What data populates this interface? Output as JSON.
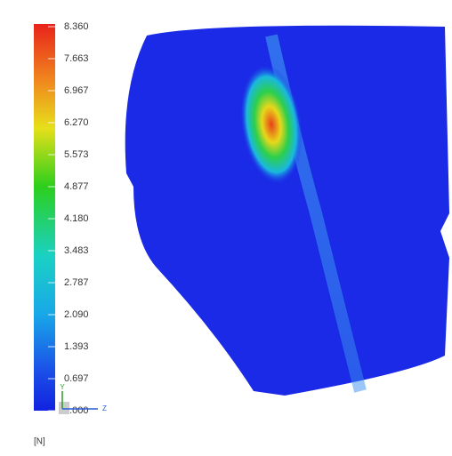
{
  "legend": {
    "labels": [
      "8.360",
      "7.663",
      "6.967",
      "6.270",
      "5.573",
      "4.877",
      "4.180",
      "3.483",
      "2.787",
      "2.090",
      "1.393",
      "0.697",
      "0.000"
    ],
    "unit": "[N]"
  },
  "triad": {
    "y": "Y",
    "z": "Z"
  }
}
